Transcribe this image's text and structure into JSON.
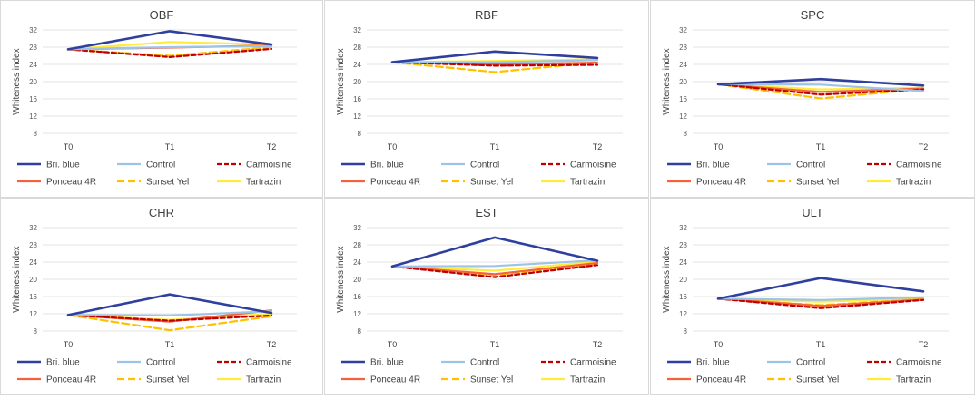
{
  "legend_styles": [
    {
      "name": "Bri. blue",
      "color": "#2e3f9e",
      "width": 2.6,
      "dash": ""
    },
    {
      "name": "Control",
      "color": "#9dc3e6",
      "width": 2.2,
      "dash": ""
    },
    {
      "name": "Carmoisine",
      "color": "#c00000",
      "width": 2.2,
      "dash": "5,3"
    },
    {
      "name": "Ponceau 4R",
      "color": "#f4623a",
      "width": 2.2,
      "dash": ""
    },
    {
      "name": "Sunset Yel",
      "color": "#ffc000",
      "width": 2.2,
      "dash": "8,4"
    },
    {
      "name": "Tartrazin",
      "color": "#ffeb3b",
      "width": 2.2,
      "dash": ""
    }
  ],
  "chart_data": [
    {
      "type": "line",
      "title": "OBF",
      "ylabel": "Whiteness index",
      "xlabel": "",
      "categories": [
        "T0",
        "T1",
        "T2"
      ],
      "ylim": [
        8,
        32
      ],
      "yticks": [
        8,
        12,
        16,
        20,
        24,
        28,
        32
      ],
      "grid": true,
      "legend_position": "bottom",
      "series": [
        {
          "name": "Bri. blue",
          "values": [
            27.5,
            31.7,
            28.6
          ]
        },
        {
          "name": "Control",
          "values": [
            27.5,
            28.0,
            28.2
          ]
        },
        {
          "name": "Carmoisine",
          "values": [
            27.5,
            25.7,
            27.6
          ]
        },
        {
          "name": "Ponceau 4R",
          "values": [
            27.5,
            27.9,
            28.4
          ]
        },
        {
          "name": "Sunset Yel",
          "values": [
            27.5,
            26.0,
            28.0
          ]
        },
        {
          "name": "Tartrazin",
          "values": [
            27.5,
            29.2,
            28.6
          ]
        }
      ]
    },
    {
      "type": "line",
      "title": "RBF",
      "ylabel": "Whiteness index",
      "xlabel": "",
      "categories": [
        "T0",
        "T1",
        "T2"
      ],
      "ylim": [
        8,
        32
      ],
      "yticks": [
        8,
        12,
        16,
        20,
        24,
        28,
        32
      ],
      "grid": true,
      "legend_position": "bottom",
      "series": [
        {
          "name": "Bri. blue",
          "values": [
            24.5,
            27.0,
            25.5
          ]
        },
        {
          "name": "Control",
          "values": [
            24.5,
            24.5,
            25.0
          ]
        },
        {
          "name": "Carmoisine",
          "values": [
            24.5,
            23.7,
            23.9
          ]
        },
        {
          "name": "Ponceau 4R",
          "values": [
            24.5,
            24.0,
            24.4
          ]
        },
        {
          "name": "Sunset Yel",
          "values": [
            24.5,
            22.2,
            24.5
          ]
        },
        {
          "name": "Tartrazin",
          "values": [
            24.5,
            24.8,
            25.2
          ]
        }
      ]
    },
    {
      "type": "line",
      "title": "SPC",
      "ylabel": "Whiteness index",
      "xlabel": "",
      "categories": [
        "T0",
        "T1",
        "T2"
      ],
      "ylim": [
        8,
        32
      ],
      "yticks": [
        8,
        12,
        16,
        20,
        24,
        28,
        32
      ],
      "grid": true,
      "legend_position": "bottom",
      "series": [
        {
          "name": "Bri. blue",
          "values": [
            19.4,
            20.6,
            19.1
          ]
        },
        {
          "name": "Control",
          "values": [
            19.4,
            19.3,
            17.8
          ]
        },
        {
          "name": "Carmoisine",
          "values": [
            19.4,
            17.0,
            18.2
          ]
        },
        {
          "name": "Ponceau 4R",
          "values": [
            19.4,
            17.6,
            18.4
          ]
        },
        {
          "name": "Sunset Yel",
          "values": [
            19.4,
            16.1,
            18.3
          ]
        },
        {
          "name": "Tartrazin",
          "values": [
            19.4,
            18.2,
            18.6
          ]
        }
      ]
    },
    {
      "type": "line",
      "title": "CHR",
      "ylabel": "Whiteness index",
      "xlabel": "",
      "categories": [
        "T0",
        "T1",
        "T2"
      ],
      "ylim": [
        8,
        32
      ],
      "yticks": [
        8,
        12,
        16,
        20,
        24,
        28,
        32
      ],
      "grid": true,
      "legend_position": "bottom",
      "series": [
        {
          "name": "Bri. blue",
          "values": [
            11.7,
            16.5,
            12.2
          ]
        },
        {
          "name": "Control",
          "values": [
            11.7,
            11.6,
            12.6
          ]
        },
        {
          "name": "Carmoisine",
          "values": [
            11.7,
            10.4,
            11.6
          ]
        },
        {
          "name": "Ponceau 4R",
          "values": [
            11.7,
            10.2,
            12.8
          ]
        },
        {
          "name": "Sunset Yel",
          "values": [
            11.7,
            8.2,
            11.4
          ]
        },
        {
          "name": "Tartrazin",
          "values": [
            11.7,
            10.6,
            12.0
          ]
        }
      ]
    },
    {
      "type": "line",
      "title": "EST",
      "ylabel": "Whiteness index",
      "xlabel": "",
      "categories": [
        "T0",
        "T1",
        "T2"
      ],
      "ylim": [
        8,
        32
      ],
      "yticks": [
        8,
        12,
        16,
        20,
        24,
        28,
        32
      ],
      "grid": true,
      "legend_position": "bottom",
      "series": [
        {
          "name": "Bri. blue",
          "values": [
            23.0,
            29.7,
            24.3
          ]
        },
        {
          "name": "Control",
          "values": [
            23.0,
            23.1,
            24.4
          ]
        },
        {
          "name": "Carmoisine",
          "values": [
            23.0,
            20.5,
            23.3
          ]
        },
        {
          "name": "Ponceau 4R",
          "values": [
            23.0,
            21.2,
            23.8
          ]
        },
        {
          "name": "Sunset Yel",
          "values": [
            23.0,
            21.0,
            23.5
          ]
        },
        {
          "name": "Tartrazin",
          "values": [
            23.0,
            22.0,
            24.1
          ]
        }
      ]
    },
    {
      "type": "line",
      "title": "ULT",
      "ylabel": "Whiteness index",
      "xlabel": "",
      "categories": [
        "T0",
        "T1",
        "T2"
      ],
      "ylim": [
        8,
        32
      ],
      "yticks": [
        8,
        12,
        16,
        20,
        24,
        28,
        32
      ],
      "grid": true,
      "legend_position": "bottom",
      "series": [
        {
          "name": "Bri. blue",
          "values": [
            15.5,
            20.3,
            17.2
          ]
        },
        {
          "name": "Control",
          "values": [
            15.5,
            15.2,
            15.8
          ]
        },
        {
          "name": "Carmoisine",
          "values": [
            15.5,
            13.3,
            15.2
          ]
        },
        {
          "name": "Ponceau 4R",
          "values": [
            15.5,
            13.8,
            15.3
          ]
        },
        {
          "name": "Sunset Yel",
          "values": [
            15.5,
            14.0,
            15.4
          ]
        },
        {
          "name": "Tartrazin",
          "values": [
            15.5,
            14.8,
            15.6
          ]
        }
      ]
    }
  ]
}
